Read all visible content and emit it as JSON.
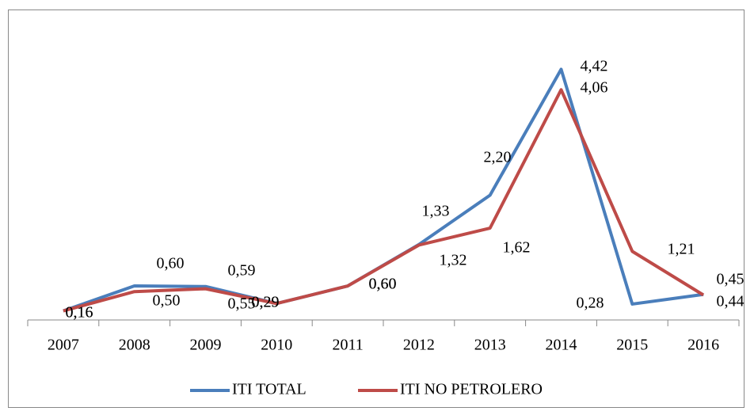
{
  "chart_data": {
    "type": "line",
    "categories": [
      "2007",
      "2008",
      "2009",
      "2010",
      "2011",
      "2012",
      "2013",
      "2014",
      "2015",
      "2016"
    ],
    "series": [
      {
        "name": "ITI TOTAL",
        "color": "#4a7ebb",
        "values": [
          0.16,
          0.6,
          0.59,
          0.29,
          0.6,
          1.33,
          2.2,
          4.42,
          0.28,
          0.45
        ],
        "value_labels": [
          "0,16",
          "0,60",
          "0,59",
          "0,29",
          "0,60",
          "1,33",
          "2,20",
          "4,42",
          "0,28",
          "0,45"
        ]
      },
      {
        "name": "ITI NO PETROLERO",
        "color": "#be4b48",
        "values": [
          0.16,
          0.5,
          0.55,
          0.29,
          0.6,
          1.32,
          1.62,
          4.06,
          1.21,
          0.44
        ],
        "value_labels": [
          "0,16",
          "0,50",
          "0,55",
          "0,29",
          "0,60",
          "1,32",
          "1,62",
          "4,06",
          "1,21",
          "0,44"
        ]
      }
    ],
    "ylim": [
      0,
      5
    ],
    "legend": "bottom"
  }
}
